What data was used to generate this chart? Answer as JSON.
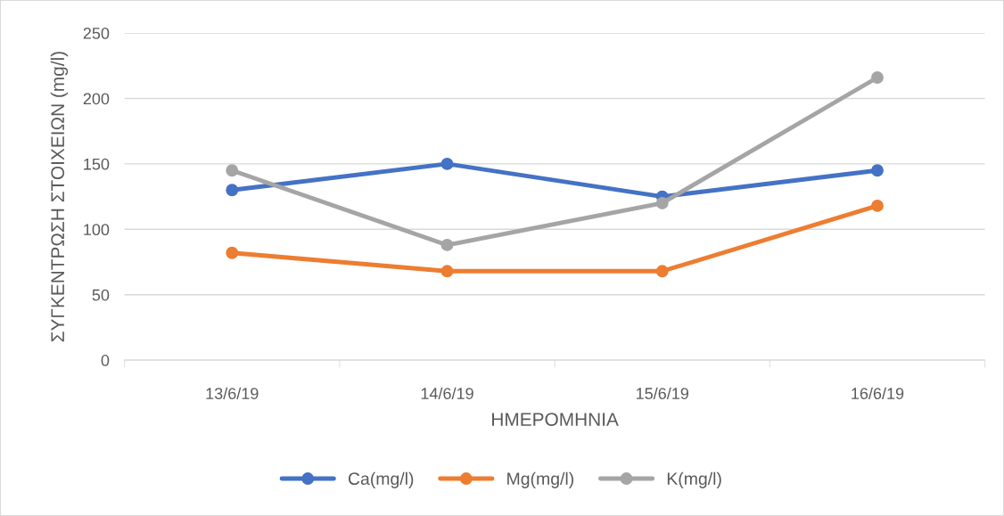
{
  "chart_data": {
    "type": "line",
    "xlabel": "ΗΜΕΡΟΜΗΝΙΑ",
    "ylabel": "ΣΥΓΚΕΝΤΡΩΣΗ ΣΤΟΙΧΕΙΩΝ (mg/l)",
    "categories": [
      "13/6/19",
      "14/6/19",
      "15/6/19",
      "16/6/19"
    ],
    "series": [
      {
        "name": "Ca(mg/l)",
        "color": "#4472c4",
        "values": [
          130,
          150,
          125,
          145
        ]
      },
      {
        "name": "Mg(mg/l)",
        "color": "#ed7d31",
        "values": [
          82,
          68,
          68,
          118
        ]
      },
      {
        "name": "K(mg/l)",
        "color": "#a5a5a5",
        "values": [
          145,
          88,
          120,
          216
        ]
      }
    ],
    "ylim": [
      0,
      250
    ],
    "yticks": [
      0,
      50,
      100,
      150,
      200,
      250
    ],
    "grid": "y",
    "legend": "bottom",
    "marker": "circle",
    "line_style": "solid"
  }
}
